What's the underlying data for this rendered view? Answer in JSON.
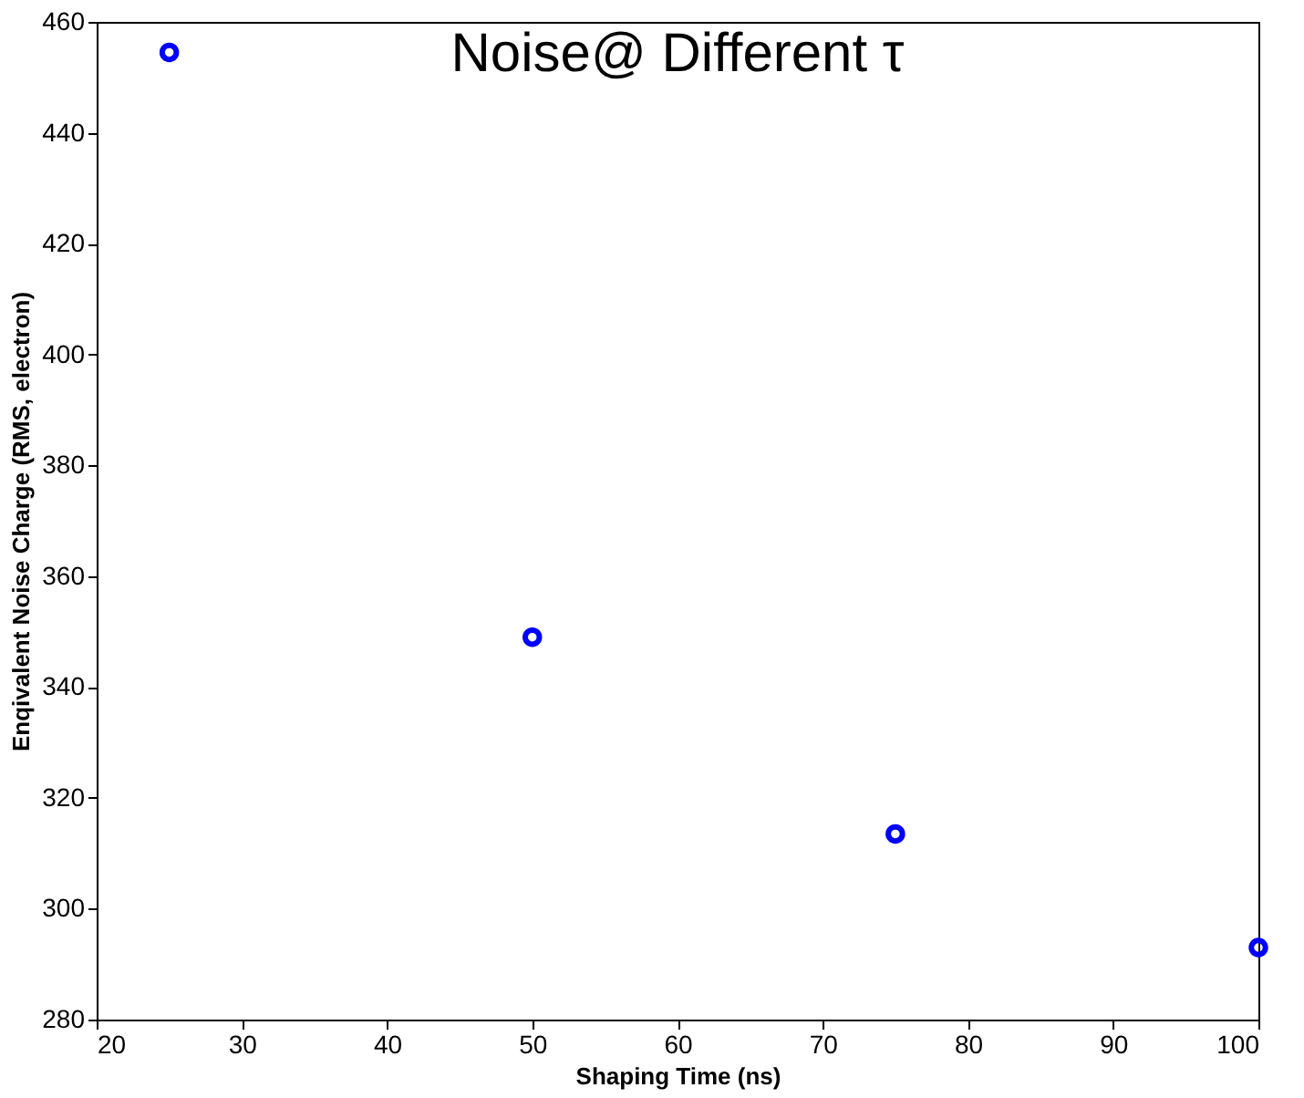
{
  "chart_data": {
    "type": "scatter",
    "title": "Noise@ Different τ",
    "xlabel": "Shaping Time (ns)",
    "ylabel": "Enqivalent Noise Charge (RMS, electron)",
    "x": [
      25,
      50,
      75,
      100
    ],
    "series": [
      {
        "color": "#0000ff",
        "values": [
          454.5,
          349,
          313.5,
          293
        ]
      }
    ],
    "xlim": [
      20,
      100
    ],
    "xticks": [
      20,
      30,
      40,
      50,
      60,
      70,
      80,
      90,
      100
    ],
    "ylim": [
      280,
      460
    ],
    "yticks": [
      280,
      300,
      320,
      340,
      360,
      380,
      400,
      420,
      440,
      460
    ],
    "grid": false,
    "marker": "circle"
  }
}
